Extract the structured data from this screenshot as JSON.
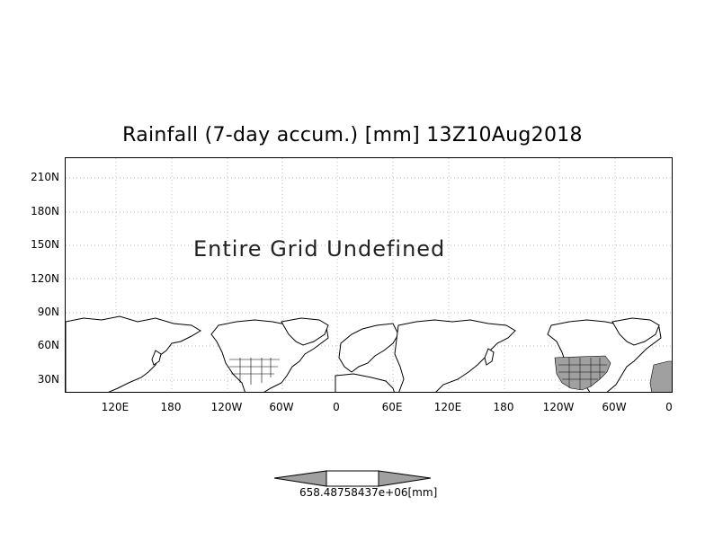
{
  "title": "Rainfall (7-day accum.) [mm] 13Z10Aug2018",
  "overlay_text": "Entire Grid Undefined",
  "y_axis_labels": [
    "210N",
    "180N",
    "150N",
    "120N",
    "90N",
    "60N",
    "30N"
  ],
  "x_axis_labels": [
    "120E",
    "180",
    "120W",
    "60W",
    "0",
    "60E",
    "120E",
    "180",
    "120W",
    "60W",
    "0"
  ],
  "colorbar": {
    "label": "658.48758437e+06[mm]"
  },
  "colors": {
    "land_fill": "#ffffff",
    "shaded_land": "#a0a0a0",
    "grid": "#bbbbbb",
    "colorbar_fill": "#a0a0a0"
  }
}
